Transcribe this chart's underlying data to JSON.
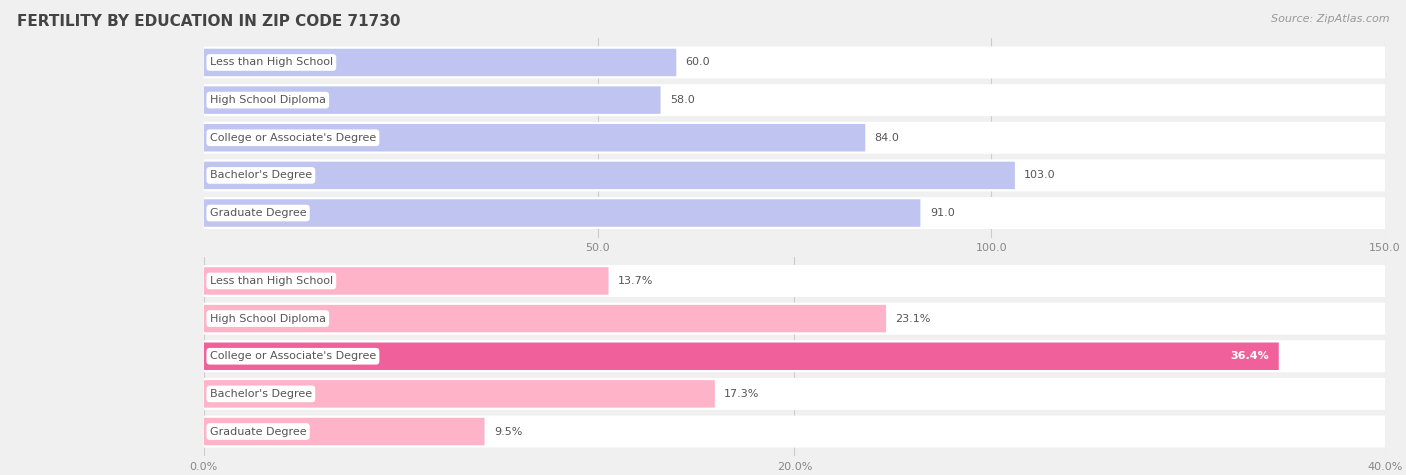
{
  "title": "FERTILITY BY EDUCATION IN ZIP CODE 71730",
  "source_text": "Source: ZipAtlas.com",
  "top_chart": {
    "categories": [
      "Less than High School",
      "High School Diploma",
      "College or Associate's Degree",
      "Bachelor's Degree",
      "Graduate Degree"
    ],
    "values": [
      60.0,
      58.0,
      84.0,
      103.0,
      91.0
    ],
    "bar_color_light": "#bfc5f0",
    "bar_color_dark": "#8890e0",
    "xlim": [
      0,
      150
    ],
    "xticks": [
      50.0,
      100.0,
      150.0
    ],
    "xtick_labels": [
      "50.0",
      "100.0",
      "150.0"
    ],
    "value_suffix": "",
    "highlight_index": -1
  },
  "bottom_chart": {
    "categories": [
      "Less than High School",
      "High School Diploma",
      "College or Associate's Degree",
      "Bachelor's Degree",
      "Graduate Degree"
    ],
    "values": [
      13.7,
      23.1,
      36.4,
      17.3,
      9.5
    ],
    "bar_color_light": "#ffb3c8",
    "bar_color_dark": "#f0609a",
    "xlim": [
      0,
      40
    ],
    "xticks": [
      0.0,
      20.0,
      40.0
    ],
    "xtick_labels": [
      "0.0%",
      "20.0%",
      "40.0%"
    ],
    "value_suffix": "%",
    "highlight_index": 2
  },
  "background_color": "#f0f0f0",
  "bar_bg_color": "#ffffff",
  "label_fontsize": 8.0,
  "value_fontsize": 8.0,
  "title_fontsize": 11,
  "axis_tick_fontsize": 8.0,
  "source_fontsize": 8.0
}
